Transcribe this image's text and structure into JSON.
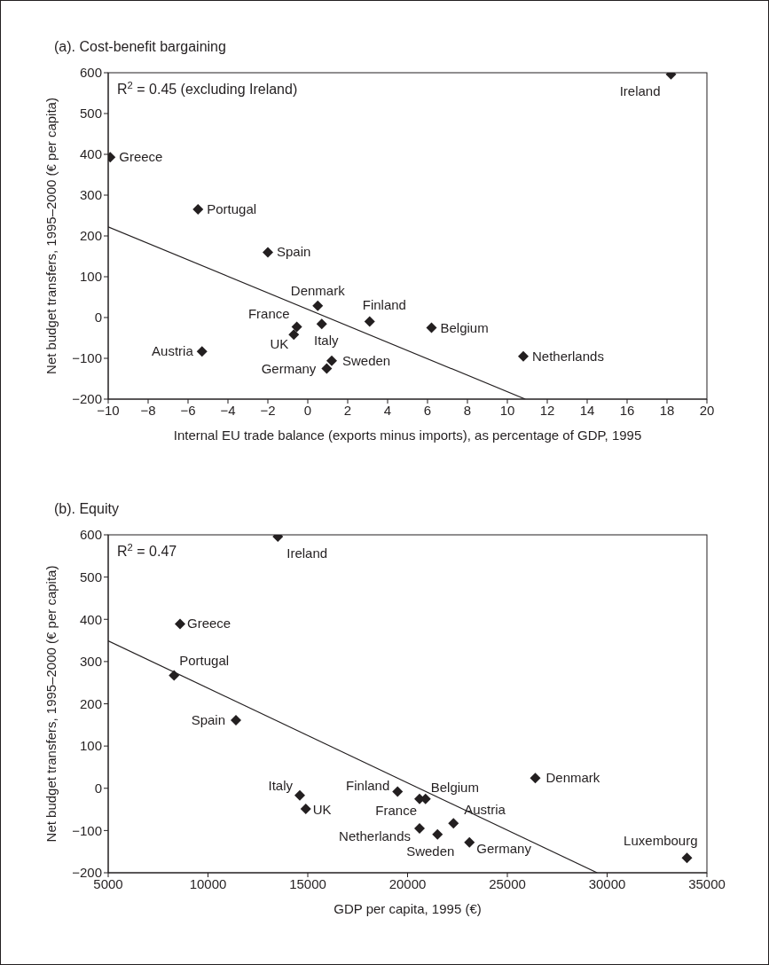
{
  "chart_data": [
    {
      "type": "scatter",
      "title": "(a). Cost-benefit bargaining",
      "xlabel": "Internal EU trade balance (exports minus imports), as percentage of GDP, 1995",
      "ylabel": "Net budget transfers, 1995–2000 (€ per capita)",
      "xlim": [
        -10,
        20
      ],
      "ylim": [
        -200,
        600
      ],
      "xticks": [
        -10,
        -8,
        -6,
        -4,
        -2,
        0,
        2,
        4,
        6,
        8,
        10,
        12,
        14,
        16,
        18,
        20
      ],
      "yticks": [
        -200,
        -100,
        0,
        100,
        200,
        300,
        400,
        500,
        600
      ],
      "grid": false,
      "series": [
        {
          "marker": "diamond",
          "color": "#231f20",
          "x": [
            18.2,
            -9.9,
            -5.5,
            -2,
            0.5,
            3.1,
            6.2,
            10.8,
            -0.55,
            -0.7,
            0.7,
            -5.3,
            1.2,
            0.95
          ],
          "values": [
            596,
            393,
            265,
            160,
            29,
            -10,
            -25,
            -95,
            -23,
            -42,
            -16,
            -83,
            -106,
            -125
          ]
        },
        {
          "type": "line",
          "marker": "none",
          "color": "#231f20",
          "x": [
            -10,
            10.9
          ],
          "values": [
            222,
            -200
          ]
        }
      ],
      "annotations": [
        "R$^{2}$ = 0.45 (excluding Ireland)",
        {
          "text": "Ireland",
          "x": 18.2,
          "y": 596
        },
        {
          "text": "Greece",
          "x": -9.9,
          "y": 393
        },
        {
          "text": "Portugal",
          "x": -5.5,
          "y": 265
        },
        {
          "text": "Spain",
          "x": -2,
          "y": 160
        },
        {
          "text": "Denmark",
          "x": 0.5,
          "y": 29
        },
        {
          "text": "Finland",
          "x": 3.1,
          "y": -10
        },
        {
          "text": "Belgium",
          "x": 6.2,
          "y": -25
        },
        {
          "text": "Netherlands",
          "x": 10.8,
          "y": -95
        },
        {
          "text": "France",
          "x": -0.55,
          "y": -23
        },
        {
          "text": "UK",
          "x": -0.7,
          "y": -42
        },
        {
          "text": "Italy",
          "x": 0.7,
          "y": -16
        },
        {
          "text": "Austria",
          "x": -5.3,
          "y": -83
        },
        {
          "text": "Sweden",
          "x": 1.2,
          "y": -106
        },
        {
          "text": "Germany",
          "x": 0.95,
          "y": -125
        }
      ]
    },
    {
      "type": "scatter",
      "title": "(b). Equity",
      "xlabel": "GDP per capita, 1995 (€)",
      "ylabel": "Net budget transfers, 1995–2000 (€ per capita)",
      "xlim": [
        5000,
        35000
      ],
      "ylim": [
        -200,
        600
      ],
      "xticks": [
        5000,
        10000,
        15000,
        20000,
        25000,
        30000,
        35000
      ],
      "yticks": [
        -200,
        -100,
        0,
        100,
        200,
        300,
        400,
        500,
        600
      ],
      "grid": false,
      "series": [
        {
          "marker": "diamond",
          "color": "#231f20",
          "x": [
            13500,
            8600,
            8300,
            11400,
            14600,
            14900,
            19500,
            20600,
            20900,
            26400,
            22300,
            20600,
            21500,
            23100,
            34000
          ],
          "values": [
            596,
            389,
            267,
            161,
            -17,
            -49,
            -8,
            -25,
            -25,
            24,
            -83,
            -95,
            -109,
            -128,
            -165
          ]
        },
        {
          "type": "line",
          "marker": "none",
          "color": "#231f20",
          "x": [
            5000,
            29500
          ],
          "values": [
            349,
            -200
          ]
        }
      ],
      "annotations": [
        "R$^{2}$ = 0.47",
        {
          "text": "Ireland",
          "x": 13500,
          "y": 596
        },
        {
          "text": "Greece",
          "x": 8600,
          "y": 389
        },
        {
          "text": "Portugal",
          "x": 8300,
          "y": 267
        },
        {
          "text": "Spain",
          "x": 11400,
          "y": 161
        },
        {
          "text": "Italy",
          "x": 14600,
          "y": -17
        },
        {
          "text": "UK",
          "x": 14900,
          "y": -49
        },
        {
          "text": "Finland",
          "x": 19500,
          "y": -8
        },
        {
          "text": "France",
          "x": 20600,
          "y": -25
        },
        {
          "text": "Belgium",
          "x": 20900,
          "y": -25
        },
        {
          "text": "Denmark",
          "x": 26400,
          "y": 24
        },
        {
          "text": "Austria",
          "x": 22300,
          "y": -83
        },
        {
          "text": "Netherlands",
          "x": 20600,
          "y": -95
        },
        {
          "text": "Sweden",
          "x": 21500,
          "y": -109
        },
        {
          "text": "Germany",
          "x": 23100,
          "y": -128
        },
        {
          "text": "Luxembourg",
          "x": 34000,
          "y": -165
        }
      ]
    }
  ]
}
